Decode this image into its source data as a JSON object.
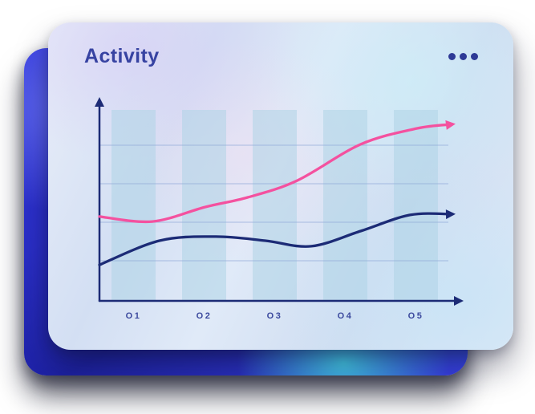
{
  "card": {
    "title": "Activity",
    "menu_icon": "ellipsis-icon"
  },
  "colors": {
    "title": "#3743a2",
    "accent_pink": "#f4519f",
    "accent_navy": "#1c2b76",
    "axis": "#1c2b76",
    "grid": "#8fa8d8",
    "bar_fill": "#aed3e6",
    "label": "#3c4a9e",
    "menu_dots": "#2e3a96"
  },
  "chart_data": {
    "type": "line",
    "title": "Activity",
    "categories": [
      "O1",
      "O2",
      "O3",
      "O4",
      "O5"
    ],
    "series": [
      {
        "name": "pink-line",
        "color": "#f4519f",
        "values": [
          40,
          46,
          54,
          71,
          84
        ],
        "detail_points": [
          {
            "x": 0.0,
            "v": 41.2
          },
          {
            "x": 0.15,
            "v": 38.8
          },
          {
            "x": 0.3,
            "v": 45.9
          },
          {
            "x": 0.42,
            "v": 50.6
          },
          {
            "x": 0.56,
            "v": 58.8
          },
          {
            "x": 0.74,
            "v": 76.5
          },
          {
            "x": 0.9,
            "v": 84.3
          },
          {
            "x": 1.0,
            "v": 86.3
          }
        ]
      },
      {
        "name": "navy-line",
        "color": "#1c2b76",
        "values": [
          25,
          31,
          29.5,
          31,
          42
        ],
        "detail_points": [
          {
            "x": 0.0,
            "v": 17.6
          },
          {
            "x": 0.17,
            "v": 29.4
          },
          {
            "x": 0.33,
            "v": 31.4
          },
          {
            "x": 0.47,
            "v": 29.4
          },
          {
            "x": 0.6,
            "v": 26.7
          },
          {
            "x": 0.74,
            "v": 34.1
          },
          {
            "x": 0.88,
            "v": 42.0
          },
          {
            "x": 1.0,
            "v": 42.4
          }
        ]
      }
    ],
    "xlabel": "",
    "ylabel": "",
    "ylim": [
      0,
      100
    ],
    "grid_lines": 4,
    "grid_on": true,
    "legend": "none",
    "axis_arrows": true
  }
}
